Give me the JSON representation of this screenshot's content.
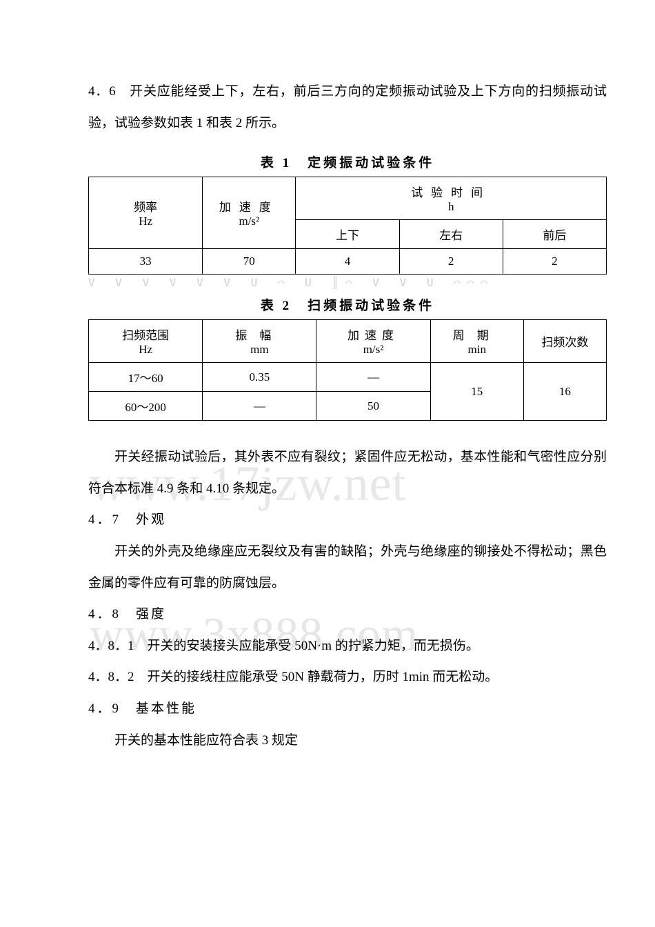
{
  "paragraphs": {
    "p46": "4．6　开关应能经受上下，左右，前后三方向的定频振动试验及上下方向的扫频振动试验，试验参数如表 1 和表 2 所示。",
    "post_table2": "开关经振动试验后，其外表不应有裂纹；紧固件应无松动，基本性能和气密性应分别符合本标准 4.9 条和 4.10 条规定。",
    "p47_title": "4．7　外观",
    "p47_body": "开关的外壳及绝缘座应无裂纹及有害的缺陷；外壳与绝缘座的铆接处不得松动；黑色金属的零件应有可靠的防腐蚀层。",
    "p48_title": "4．8　强度",
    "p481": "4．8．1　开关的安装接头应能承受 50N·m 的拧紧力矩，而无损伤。",
    "p482": "4．8．2　开关的接线柱应能承受 50N 静载荷力，历时 1min 而无松动。",
    "p49_title": "4．9　基本性能",
    "p49_body": "开关的基本性能应符合表 3 规定"
  },
  "table1": {
    "caption": "表 1　定频振动试验条件",
    "headers": {
      "freq": "频率",
      "freq_unit": "Hz",
      "accel": "加速度",
      "accel_unit": "m/s²",
      "time": "试验时间",
      "time_unit": "h",
      "updown": "上下",
      "leftright": "左右",
      "frontback": "前后"
    },
    "row": {
      "freq": "33",
      "accel": "70",
      "updown": "4",
      "leftright": "2",
      "frontback": "2"
    }
  },
  "table2": {
    "caption": "表 2　扫频振动试验条件",
    "headers": {
      "range": "扫频范围",
      "range_unit": "Hz",
      "amp": "振幅",
      "amp_unit": "mm",
      "accel": "加速度",
      "accel_unit": "m/s²",
      "period": "周期",
      "period_unit": "min",
      "count": "扫频次数"
    },
    "rows": [
      {
        "range": "17～60",
        "amp": "0.35",
        "accel": "—",
        "period": "15",
        "count": "16"
      },
      {
        "range": "60～200",
        "amp": "—",
        "accel": "50"
      }
    ]
  },
  "watermarks": {
    "wm1": "www.17jzw.net",
    "wm2": "www.3x888.com"
  },
  "noise": "V V   V V   V V  U ⌒  U ║⌒  V V U ⌒⌒⌒"
}
